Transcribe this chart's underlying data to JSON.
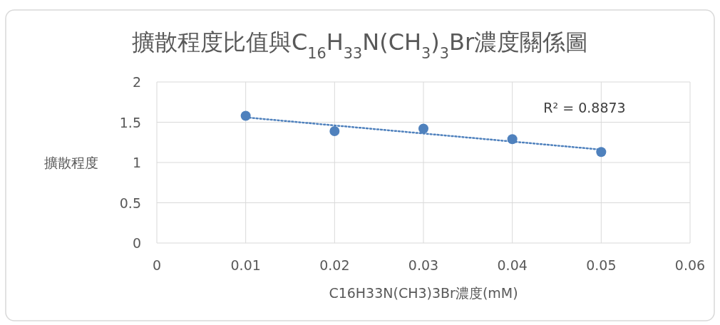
{
  "chart_data": {
    "type": "scatter",
    "title": "擴散程度比值與C$_{16}$H$_{33}$N(CH$_{3}$)$_{3}$Br濃度關係圖",
    "xlabel": "C16H33N(CH3)3Br濃度(mM)",
    "ylabel": "擴散程度",
    "xlim": [
      0,
      0.06
    ],
    "xticks": [
      0,
      0.01,
      0.02,
      0.03,
      0.04,
      0.05,
      0.06
    ],
    "ylim": [
      0,
      2
    ],
    "yticks": [
      0,
      0.5,
      1,
      1.5,
      2
    ],
    "grid": true,
    "marker": "circle",
    "series": [
      {
        "color": "#4f81bd",
        "x": [
          0.01,
          0.02,
          0.03,
          0.04,
          0.05
        ],
        "values": [
          1.58,
          1.39,
          1.42,
          1.29,
          1.13
        ]
      },
      {
        "type": "line",
        "marker": "none",
        "color": "#4f81bd",
        "line_style": "dotted",
        "x": [
          0.01,
          0.05
        ],
        "values": [
          1.56,
          1.16
        ]
      }
    ],
    "annotations": [
      "R² = 0.8873"
    ]
  }
}
